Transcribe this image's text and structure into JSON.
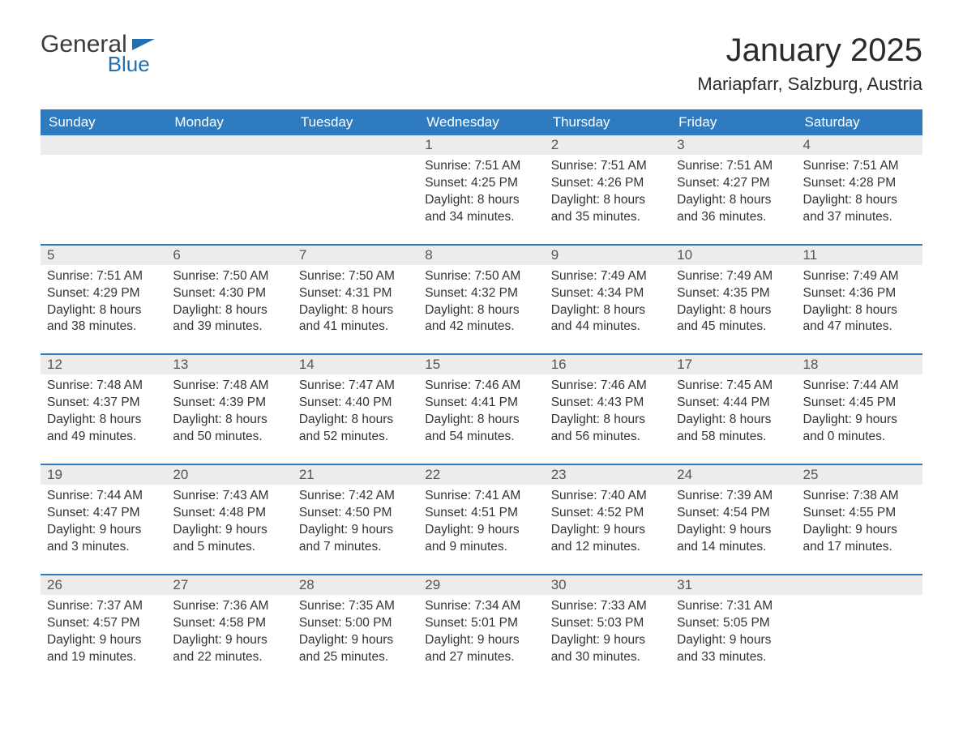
{
  "brand": {
    "word1": "General",
    "word2": "Blue",
    "accent_color": "#1f6fb2"
  },
  "title": "January 2025",
  "location": "Mariapfarr, Salzburg, Austria",
  "colors": {
    "header_bg": "#2f7bbf",
    "header_text": "#ffffff",
    "daynum_bg": "#ececec",
    "row_border": "#2f7bbf",
    "body_text": "#333333"
  },
  "columns": [
    "Sunday",
    "Monday",
    "Tuesday",
    "Wednesday",
    "Thursday",
    "Friday",
    "Saturday"
  ],
  "weeks": [
    [
      null,
      null,
      null,
      {
        "n": "1",
        "sunrise": "7:51 AM",
        "sunset": "4:25 PM",
        "dl1": "8 hours",
        "dl2": "34 minutes."
      },
      {
        "n": "2",
        "sunrise": "7:51 AM",
        "sunset": "4:26 PM",
        "dl1": "8 hours",
        "dl2": "35 minutes."
      },
      {
        "n": "3",
        "sunrise": "7:51 AM",
        "sunset": "4:27 PM",
        "dl1": "8 hours",
        "dl2": "36 minutes."
      },
      {
        "n": "4",
        "sunrise": "7:51 AM",
        "sunset": "4:28 PM",
        "dl1": "8 hours",
        "dl2": "37 minutes."
      }
    ],
    [
      {
        "n": "5",
        "sunrise": "7:51 AM",
        "sunset": "4:29 PM",
        "dl1": "8 hours",
        "dl2": "38 minutes."
      },
      {
        "n": "6",
        "sunrise": "7:50 AM",
        "sunset": "4:30 PM",
        "dl1": "8 hours",
        "dl2": "39 minutes."
      },
      {
        "n": "7",
        "sunrise": "7:50 AM",
        "sunset": "4:31 PM",
        "dl1": "8 hours",
        "dl2": "41 minutes."
      },
      {
        "n": "8",
        "sunrise": "7:50 AM",
        "sunset": "4:32 PM",
        "dl1": "8 hours",
        "dl2": "42 minutes."
      },
      {
        "n": "9",
        "sunrise": "7:49 AM",
        "sunset": "4:34 PM",
        "dl1": "8 hours",
        "dl2": "44 minutes."
      },
      {
        "n": "10",
        "sunrise": "7:49 AM",
        "sunset": "4:35 PM",
        "dl1": "8 hours",
        "dl2": "45 minutes."
      },
      {
        "n": "11",
        "sunrise": "7:49 AM",
        "sunset": "4:36 PM",
        "dl1": "8 hours",
        "dl2": "47 minutes."
      }
    ],
    [
      {
        "n": "12",
        "sunrise": "7:48 AM",
        "sunset": "4:37 PM",
        "dl1": "8 hours",
        "dl2": "49 minutes."
      },
      {
        "n": "13",
        "sunrise": "7:48 AM",
        "sunset": "4:39 PM",
        "dl1": "8 hours",
        "dl2": "50 minutes."
      },
      {
        "n": "14",
        "sunrise": "7:47 AM",
        "sunset": "4:40 PM",
        "dl1": "8 hours",
        "dl2": "52 minutes."
      },
      {
        "n": "15",
        "sunrise": "7:46 AM",
        "sunset": "4:41 PM",
        "dl1": "8 hours",
        "dl2": "54 minutes."
      },
      {
        "n": "16",
        "sunrise": "7:46 AM",
        "sunset": "4:43 PM",
        "dl1": "8 hours",
        "dl2": "56 minutes."
      },
      {
        "n": "17",
        "sunrise": "7:45 AM",
        "sunset": "4:44 PM",
        "dl1": "8 hours",
        "dl2": "58 minutes."
      },
      {
        "n": "18",
        "sunrise": "7:44 AM",
        "sunset": "4:45 PM",
        "dl1": "9 hours",
        "dl2": "0 minutes."
      }
    ],
    [
      {
        "n": "19",
        "sunrise": "7:44 AM",
        "sunset": "4:47 PM",
        "dl1": "9 hours",
        "dl2": "3 minutes."
      },
      {
        "n": "20",
        "sunrise": "7:43 AM",
        "sunset": "4:48 PM",
        "dl1": "9 hours",
        "dl2": "5 minutes."
      },
      {
        "n": "21",
        "sunrise": "7:42 AM",
        "sunset": "4:50 PM",
        "dl1": "9 hours",
        "dl2": "7 minutes."
      },
      {
        "n": "22",
        "sunrise": "7:41 AM",
        "sunset": "4:51 PM",
        "dl1": "9 hours",
        "dl2": "9 minutes."
      },
      {
        "n": "23",
        "sunrise": "7:40 AM",
        "sunset": "4:52 PM",
        "dl1": "9 hours",
        "dl2": "12 minutes."
      },
      {
        "n": "24",
        "sunrise": "7:39 AM",
        "sunset": "4:54 PM",
        "dl1": "9 hours",
        "dl2": "14 minutes."
      },
      {
        "n": "25",
        "sunrise": "7:38 AM",
        "sunset": "4:55 PM",
        "dl1": "9 hours",
        "dl2": "17 minutes."
      }
    ],
    [
      {
        "n": "26",
        "sunrise": "7:37 AM",
        "sunset": "4:57 PM",
        "dl1": "9 hours",
        "dl2": "19 minutes."
      },
      {
        "n": "27",
        "sunrise": "7:36 AM",
        "sunset": "4:58 PM",
        "dl1": "9 hours",
        "dl2": "22 minutes."
      },
      {
        "n": "28",
        "sunrise": "7:35 AM",
        "sunset": "5:00 PM",
        "dl1": "9 hours",
        "dl2": "25 minutes."
      },
      {
        "n": "29",
        "sunrise": "7:34 AM",
        "sunset": "5:01 PM",
        "dl1": "9 hours",
        "dl2": "27 minutes."
      },
      {
        "n": "30",
        "sunrise": "7:33 AM",
        "sunset": "5:03 PM",
        "dl1": "9 hours",
        "dl2": "30 minutes."
      },
      {
        "n": "31",
        "sunrise": "7:31 AM",
        "sunset": "5:05 PM",
        "dl1": "9 hours",
        "dl2": "33 minutes."
      },
      null
    ]
  ],
  "labels": {
    "sunrise": "Sunrise:",
    "sunset": "Sunset:",
    "daylight": "Daylight:",
    "and": "and"
  }
}
